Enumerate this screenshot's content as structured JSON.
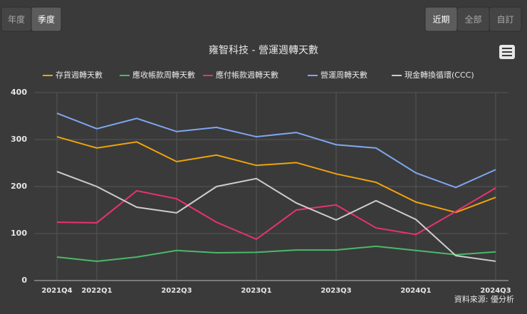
{
  "controls": {
    "left": [
      "年度",
      "季度"
    ],
    "left_active": 1,
    "right": [
      "近期",
      "全部",
      "自訂"
    ],
    "right_active": 0
  },
  "chart_data": {
    "type": "line",
    "title": "雍智科技 - 營運週轉天數",
    "categories": [
      "2021Q4",
      "2022Q1",
      null,
      "2022Q3",
      null,
      "2023Q1",
      null,
      "2023Q3",
      null,
      "2024Q1",
      null,
      "2024Q3"
    ],
    "series": [
      {
        "name": "存貨週轉天數",
        "color": "#f0a30a",
        "values": [
          306,
          282,
          295,
          253,
          267,
          245,
          251,
          227,
          209,
          167,
          145,
          177
        ]
      },
      {
        "name": "應收帳款周轉天數",
        "color": "#4cb86a",
        "values": [
          50,
          41,
          50,
          64,
          59,
          60,
          65,
          65,
          73,
          64,
          55,
          61
        ]
      },
      {
        "name": "應付帳款週轉天數",
        "color": "#e8336d",
        "values": [
          124,
          123,
          191,
          174,
          124,
          88,
          150,
          161,
          112,
          98,
          147,
          197
        ]
      },
      {
        "name": "營運周轉天數",
        "color": "#7ea7f0",
        "values": [
          356,
          323,
          345,
          317,
          326,
          306,
          315,
          289,
          282,
          229,
          198,
          236
        ]
      },
      {
        "name": "現金轉換循環(CCC)",
        "color": "#cccccc",
        "values": [
          232,
          200,
          156,
          144,
          200,
          217,
          165,
          129,
          170,
          130,
          53,
          41
        ]
      }
    ],
    "ylim": [
      0,
      400
    ],
    "yticks": [
      0,
      100,
      200,
      300,
      400
    ],
    "grid": true,
    "source": "資料來源: 優分析"
  }
}
